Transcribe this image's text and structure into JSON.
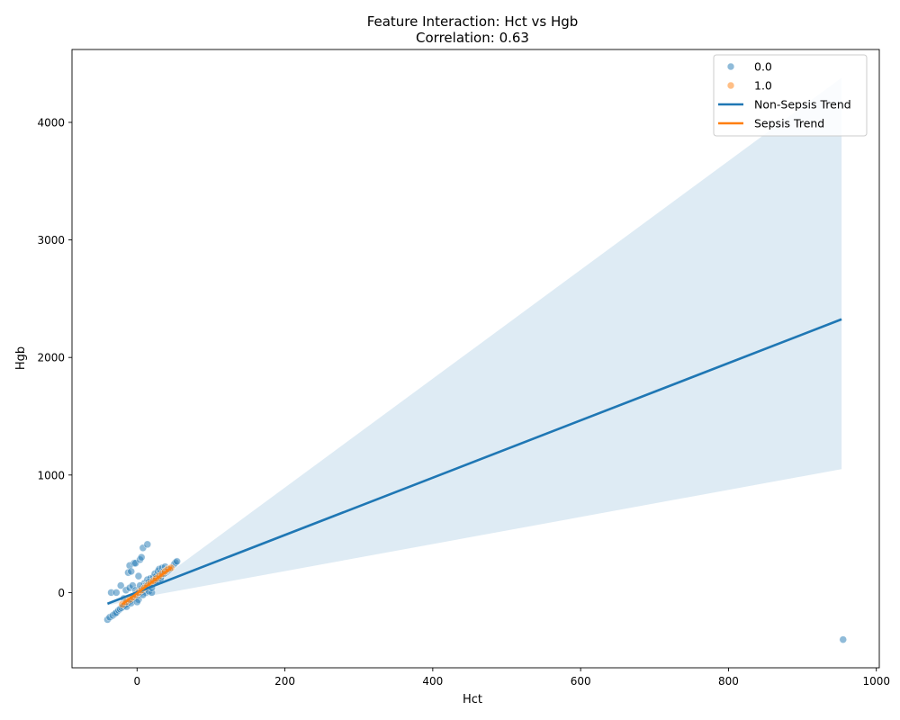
{
  "chart_data": {
    "type": "scatter",
    "title": "Feature Interaction: Hct vs Hgb",
    "subtitle": "Correlation: 0.63",
    "xlabel": "Hct",
    "ylabel": "Hgb",
    "xlim": [
      -88,
      1004
    ],
    "ylim": [
      -640,
      4620
    ],
    "xticks": [
      0,
      200,
      400,
      600,
      800,
      1000
    ],
    "yticks": [
      0,
      1000,
      2000,
      3000,
      4000
    ],
    "grid": false,
    "legend": {
      "placement": "top-right",
      "entries": [
        {
          "label": "0.0",
          "kind": "marker",
          "color": "#1f77b4"
        },
        {
          "label": "1.0",
          "kind": "marker",
          "color": "#ff7f0e"
        },
        {
          "label": "Non-Sepsis Trend",
          "kind": "line",
          "color": "#1f77b4"
        },
        {
          "label": "Sepsis Trend",
          "kind": "line",
          "color": "#ff7f0e"
        }
      ]
    },
    "series": [
      {
        "name": "0.0",
        "color": "#1f77b4",
        "points": [
          [
            -40,
            -230
          ],
          [
            -37,
            -210
          ],
          [
            -33,
            -195
          ],
          [
            -30,
            -180
          ],
          [
            -28,
            -170
          ],
          [
            -25,
            -150
          ],
          [
            -23,
            -140
          ],
          [
            -21,
            -130
          ],
          [
            -19,
            -120
          ],
          [
            -17,
            -110
          ],
          [
            -15,
            -100
          ],
          [
            -13,
            -90
          ],
          [
            -11,
            -80
          ],
          [
            -9,
            -70
          ],
          [
            -7,
            -60
          ],
          [
            -5,
            -50
          ],
          [
            -3,
            -40
          ],
          [
            -1,
            -30
          ],
          [
            1,
            -20
          ],
          [
            3,
            -10
          ],
          [
            5,
            0
          ],
          [
            7,
            10
          ],
          [
            9,
            20
          ],
          [
            11,
            30
          ],
          [
            13,
            40
          ],
          [
            15,
            50
          ],
          [
            17,
            60
          ],
          [
            19,
            70
          ],
          [
            21,
            80
          ],
          [
            23,
            90
          ],
          [
            25,
            100
          ],
          [
            27,
            110
          ],
          [
            29,
            120
          ],
          [
            31,
            130
          ],
          [
            33,
            140
          ],
          [
            35,
            150
          ],
          [
            37,
            160
          ],
          [
            39,
            170
          ],
          [
            41,
            180
          ],
          [
            43,
            190
          ],
          [
            -35,
            0
          ],
          [
            -28,
            0
          ],
          [
            -22,
            60
          ],
          [
            -15,
            20
          ],
          [
            -10,
            40
          ],
          [
            -6,
            60
          ],
          [
            -2,
            20
          ],
          [
            2,
            -60
          ],
          [
            6,
            30
          ],
          [
            10,
            80
          ],
          [
            12,
            0
          ],
          [
            14,
            110
          ],
          [
            16,
            10
          ],
          [
            18,
            120
          ],
          [
            20,
            0
          ],
          [
            22,
            130
          ],
          [
            24,
            160
          ],
          [
            26,
            140
          ],
          [
            28,
            180
          ],
          [
            30,
            200
          ],
          [
            32,
            170
          ],
          [
            34,
            210
          ],
          [
            36,
            180
          ],
          [
            38,
            220
          ],
          [
            -12,
            170
          ],
          [
            -10,
            230
          ],
          [
            -8,
            180
          ],
          [
            -4,
            250
          ],
          [
            -2,
            250
          ],
          [
            2,
            140
          ],
          [
            4,
            280
          ],
          [
            6,
            300
          ],
          [
            8,
            380
          ],
          [
            14,
            410
          ],
          [
            50,
            240
          ],
          [
            52,
            255
          ],
          [
            54,
            265
          ],
          [
            -18,
            -50
          ],
          [
            -14,
            -120
          ],
          [
            -8,
            -90
          ],
          [
            0,
            -80
          ],
          [
            4,
            60
          ],
          [
            8,
            -20
          ],
          [
            12,
            60
          ],
          [
            16,
            90
          ],
          [
            20,
            40
          ],
          [
            24,
            100
          ],
          [
            28,
            90
          ],
          [
            32,
            120
          ],
          [
            36,
            160
          ],
          [
            40,
            190
          ],
          [
            44,
            200
          ],
          [
            955,
            -400
          ]
        ]
      },
      {
        "name": "1.0",
        "color": "#ff7f0e",
        "points": [
          [
            -20,
            -100
          ],
          [
            -15,
            -80
          ],
          [
            -10,
            -60
          ],
          [
            -6,
            -40
          ],
          [
            -2,
            -20
          ],
          [
            2,
            0
          ],
          [
            6,
            20
          ],
          [
            10,
            40
          ],
          [
            14,
            60
          ],
          [
            18,
            80
          ],
          [
            22,
            100
          ],
          [
            26,
            120
          ],
          [
            30,
            140
          ],
          [
            34,
            160
          ],
          [
            38,
            180
          ],
          [
            42,
            200
          ],
          [
            46,
            210
          ]
        ]
      }
    ],
    "trend_lines": [
      {
        "name": "Non-Sepsis Trend",
        "color": "#1f77b4",
        "x": [
          -40,
          953
        ],
        "y": [
          -95,
          2325
        ],
        "ci": {
          "x": [
            -40,
            20,
            953
          ],
          "lower": [
            -110,
            -25,
            1050
          ],
          "upper": [
            -80,
            60,
            4380
          ]
        }
      },
      {
        "name": "Sepsis Trend",
        "color": "#ff7f0e",
        "x": [
          -20,
          47
        ],
        "y": [
          -100,
          215
        ]
      }
    ]
  }
}
